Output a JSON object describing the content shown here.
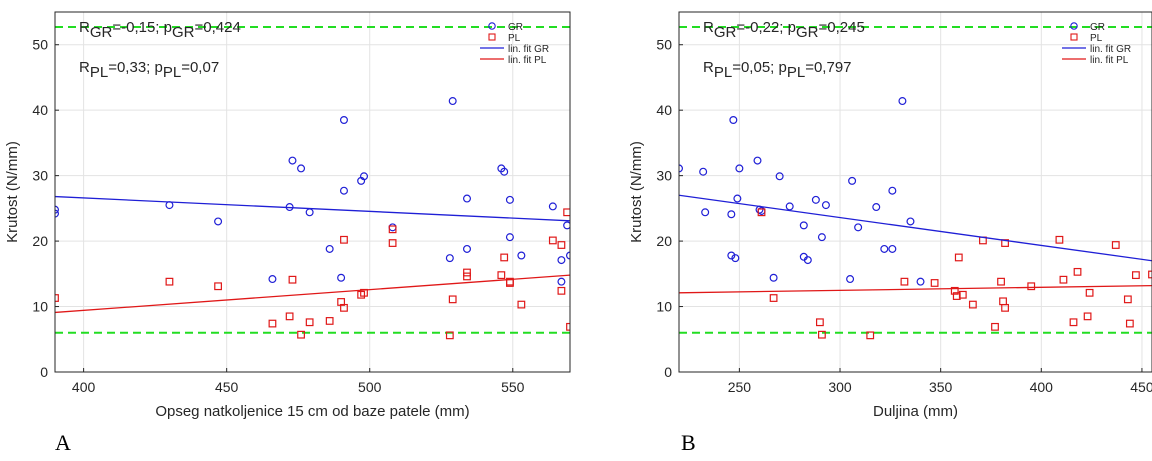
{
  "chart_data": [
    {
      "type": "scatter",
      "panel_label": "A",
      "xlabel": "Opseg natkoljenice 15 cm od baze patele (mm)",
      "ylabel": "Krutost (N/mm)",
      "xlim": [
        390,
        570
      ],
      "ylim": [
        0,
        55
      ],
      "xticks": [
        400,
        450,
        500,
        550
      ],
      "yticks": [
        0,
        10,
        20,
        30,
        40,
        50
      ],
      "grid": true,
      "legend_position": "top-right",
      "reference_lines": [
        6,
        52.7
      ],
      "stats": [
        {
          "label": "R",
          "sub1": "GR",
          "mid": "=-0,15;  p",
          "sub2": "GR",
          "tail": "=0,424"
        },
        {
          "label": "R",
          "sub1": "PL",
          "mid": "=0,33;  p",
          "sub2": "PL",
          "tail": "=0,07"
        }
      ],
      "series": [
        {
          "name": "GR",
          "marker": "circle",
          "color": "#1f1fd6",
          "points": [
            [
              390,
              24.2
            ],
            [
              390,
              24.8
            ],
            [
              430,
              25.5
            ],
            [
              447,
              23
            ],
            [
              466,
              14.2
            ],
            [
              472,
              25.2
            ],
            [
              473,
              32.3
            ],
            [
              476,
              31.1
            ],
            [
              479,
              24.4
            ],
            [
              486,
              18.8
            ],
            [
              490,
              14.4
            ],
            [
              491,
              38.5
            ],
            [
              491,
              27.7
            ],
            [
              497,
              29.2
            ],
            [
              498,
              29.9
            ],
            [
              508,
              22.1
            ],
            [
              528,
              17.4
            ],
            [
              529,
              41.4
            ],
            [
              534,
              18.8
            ],
            [
              534,
              26.5
            ],
            [
              546,
              31.1
            ],
            [
              547,
              30.6
            ],
            [
              549,
              26.3
            ],
            [
              549,
              20.6
            ],
            [
              553,
              17.8
            ],
            [
              564,
              25.3
            ],
            [
              567,
              13.8
            ],
            [
              567,
              17.1
            ],
            [
              569,
              22.4
            ],
            [
              570,
              17.8
            ]
          ]
        },
        {
          "name": "PL",
          "marker": "square",
          "color": "#e01818",
          "points": [
            [
              390,
              11.3
            ],
            [
              430,
              13.8
            ],
            [
              447,
              13.1
            ],
            [
              466,
              7.4
            ],
            [
              472,
              8.5
            ],
            [
              473,
              14.1
            ],
            [
              476,
              5.7
            ],
            [
              479,
              7.6
            ],
            [
              486,
              7.8
            ],
            [
              490,
              10.7
            ],
            [
              491,
              9.8
            ],
            [
              491,
              20.2
            ],
            [
              497,
              11.8
            ],
            [
              498,
              12.1
            ],
            [
              508,
              19.7
            ],
            [
              508,
              21.8
            ],
            [
              528,
              5.6
            ],
            [
              529,
              11.1
            ],
            [
              534,
              15.2
            ],
            [
              534,
              14.6
            ],
            [
              546,
              14.8
            ],
            [
              547,
              17.5
            ],
            [
              549,
              13.8
            ],
            [
              549,
              13.6
            ],
            [
              553,
              10.3
            ],
            [
              564,
              20.1
            ],
            [
              567,
              19.4
            ],
            [
              567,
              12.4
            ],
            [
              569,
              24.4
            ],
            [
              570,
              6.9
            ]
          ]
        },
        {
          "name": "lin. fit GR",
          "type": "line",
          "color": "#1f1fd6",
          "points": [
            [
              390,
              26.8
            ],
            [
              570,
              23.1
            ]
          ]
        },
        {
          "name": "lin. fit PL",
          "type": "line",
          "color": "#e01818",
          "points": [
            [
              390,
              9.1
            ],
            [
              570,
              14.8
            ]
          ]
        }
      ]
    },
    {
      "type": "scatter",
      "panel_label": "B",
      "xlabel": "Duljina (mm)",
      "ylabel": "Krutost (N/mm)",
      "xlim": [
        220,
        455
      ],
      "ylim": [
        0,
        55
      ],
      "xticks": [
        250,
        300,
        350,
        400,
        450
      ],
      "yticks": [
        0,
        10,
        20,
        30,
        40,
        50
      ],
      "grid": true,
      "legend_position": "top-right",
      "reference_lines": [
        6,
        52.7
      ],
      "stats": [
        {
          "label": "R",
          "sub1": "GR",
          "mid": "=-0,22;  p",
          "sub2": "GR",
          "tail": "=0,245"
        },
        {
          "label": "R",
          "sub1": "PL",
          "mid": "=0,05;  p",
          "sub2": "PL",
          "tail": "=0,797"
        }
      ],
      "series": [
        {
          "name": "GR",
          "marker": "circle",
          "color": "#1f1fd6",
          "points": [
            [
              220,
              31.1
            ],
            [
              232,
              30.6
            ],
            [
              233,
              24.4
            ],
            [
              246,
              24.1
            ],
            [
              246,
              17.8
            ],
            [
              247,
              38.5
            ],
            [
              248,
              17.4
            ],
            [
              249,
              26.5
            ],
            [
              250,
              31.1
            ],
            [
              259,
              32.3
            ],
            [
              260,
              24.8
            ],
            [
              261,
              24.6
            ],
            [
              267,
              14.4
            ],
            [
              270,
              29.9
            ],
            [
              275,
              25.3
            ],
            [
              282,
              17.6
            ],
            [
              282,
              22.4
            ],
            [
              284,
              17.1
            ],
            [
              288,
              26.3
            ],
            [
              291,
              20.6
            ],
            [
              293,
              25.5
            ],
            [
              305,
              14.2
            ],
            [
              306,
              29.2
            ],
            [
              309,
              22.1
            ],
            [
              318,
              25.2
            ],
            [
              322,
              18.8
            ],
            [
              326,
              18.8
            ],
            [
              326,
              27.7
            ],
            [
              331,
              41.4
            ],
            [
              335,
              23
            ],
            [
              340,
              13.8
            ]
          ]
        },
        {
          "name": "PL",
          "marker": "square",
          "color": "#e01818",
          "points": [
            [
              261,
              24.4
            ],
            [
              267,
              11.3
            ],
            [
              290,
              7.6
            ],
            [
              291,
              5.7
            ],
            [
              315,
              5.6
            ],
            [
              332,
              13.8
            ],
            [
              347,
              13.6
            ],
            [
              357,
              12.4
            ],
            [
              358,
              11.6
            ],
            [
              359,
              17.5
            ],
            [
              361,
              11.8
            ],
            [
              366,
              10.3
            ],
            [
              371,
              20.1
            ],
            [
              377,
              6.9
            ],
            [
              380,
              13.8
            ],
            [
              381,
              10.8
            ],
            [
              382,
              9.8
            ],
            [
              382,
              19.7
            ],
            [
              395,
              13.1
            ],
            [
              409,
              20.2
            ],
            [
              411,
              14.1
            ],
            [
              416,
              7.6
            ],
            [
              418,
              15.3
            ],
            [
              423,
              8.5
            ],
            [
              424,
              12.1
            ],
            [
              437,
              19.4
            ],
            [
              443,
              11.1
            ],
            [
              444,
              7.4
            ],
            [
              447,
              14.8
            ],
            [
              455,
              14.9
            ]
          ]
        },
        {
          "name": "lin. fit GR",
          "type": "line",
          "color": "#1f1fd6",
          "points": [
            [
              220,
              27
            ],
            [
              455,
              17
            ]
          ]
        },
        {
          "name": "lin. fit PL",
          "type": "line",
          "color": "#e01818",
          "points": [
            [
              220,
              12.1
            ],
            [
              455,
              13.2
            ]
          ]
        }
      ]
    }
  ]
}
